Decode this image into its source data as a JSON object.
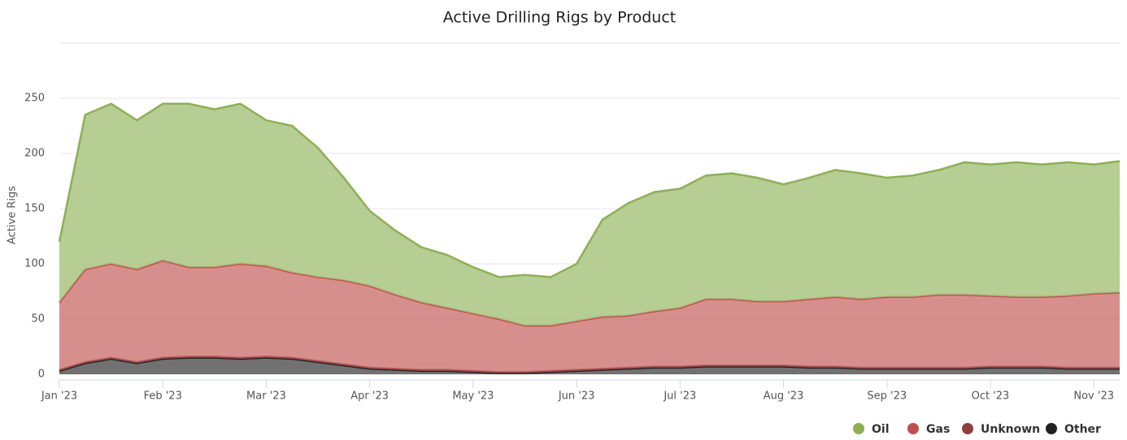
{
  "chart_data": {
    "type": "stacked_area",
    "title": "Active Drilling Rigs by Product",
    "y_label": "Active Rigs",
    "categories": [
      "Jan '23",
      null,
      null,
      null,
      "Feb '23",
      null,
      null,
      null,
      "Mar '23",
      null,
      null,
      null,
      "Apr '23",
      null,
      null,
      null,
      "May '23",
      null,
      null,
      null,
      "Jun '23",
      null,
      null,
      null,
      "Jul '23",
      null,
      null,
      null,
      "Aug '23",
      null,
      null,
      null,
      "Sep '23",
      null,
      null,
      null,
      "Oct '23",
      null,
      null,
      null,
      "Nov '23",
      null
    ],
    "series": [
      {
        "name": "Oil",
        "color": "#8db056",
        "values": [
          55,
          140,
          145,
          135,
          142,
          148,
          143,
          145,
          132,
          133,
          117,
          93,
          68,
          58,
          50,
          48,
          42,
          38,
          46,
          44,
          52,
          88,
          102,
          108,
          108,
          112,
          114,
          112,
          106,
          110,
          115,
          114,
          108,
          110,
          113,
          120,
          119,
          122,
          120,
          121,
          117,
          119
        ]
      },
      {
        "name": "Gas",
        "color": "#c0504d",
        "values": [
          61,
          84,
          85,
          84,
          88,
          81,
          81,
          85,
          82,
          77,
          76,
          76,
          74,
          67,
          61,
          56,
          52,
          48,
          42,
          41,
          44,
          47,
          47,
          50,
          53,
          60,
          60,
          58,
          58,
          61,
          63,
          62,
          64,
          64,
          66,
          66,
          64,
          63,
          63,
          65,
          67,
          68
        ]
      },
      {
        "name": "Unknown",
        "color": "#8e3e3e",
        "values": [
          1,
          1,
          1,
          1,
          1,
          1,
          1,
          1,
          1,
          1,
          1,
          1,
          1,
          1,
          1,
          1,
          1,
          1,
          1,
          1,
          1,
          1,
          1,
          1,
          1,
          1,
          1,
          1,
          1,
          1,
          1,
          1,
          1,
          1,
          1,
          1,
          1,
          1,
          1,
          1,
          1,
          1
        ]
      },
      {
        "name": "Other",
        "color": "#222222",
        "values": [
          3,
          10,
          14,
          10,
          14,
          15,
          15,
          14,
          15,
          14,
          11,
          8,
          5,
          4,
          3,
          3,
          2,
          1,
          1,
          2,
          3,
          4,
          5,
          6,
          6,
          7,
          7,
          7,
          7,
          6,
          6,
          5,
          5,
          5,
          5,
          5,
          6,
          6,
          6,
          5,
          5,
          5
        ]
      }
    ],
    "ylim": [
      0,
      300
    ],
    "yticks": [
      0,
      50,
      100,
      150,
      200,
      250
    ],
    "grid": true,
    "legend": "bottom-right"
  }
}
